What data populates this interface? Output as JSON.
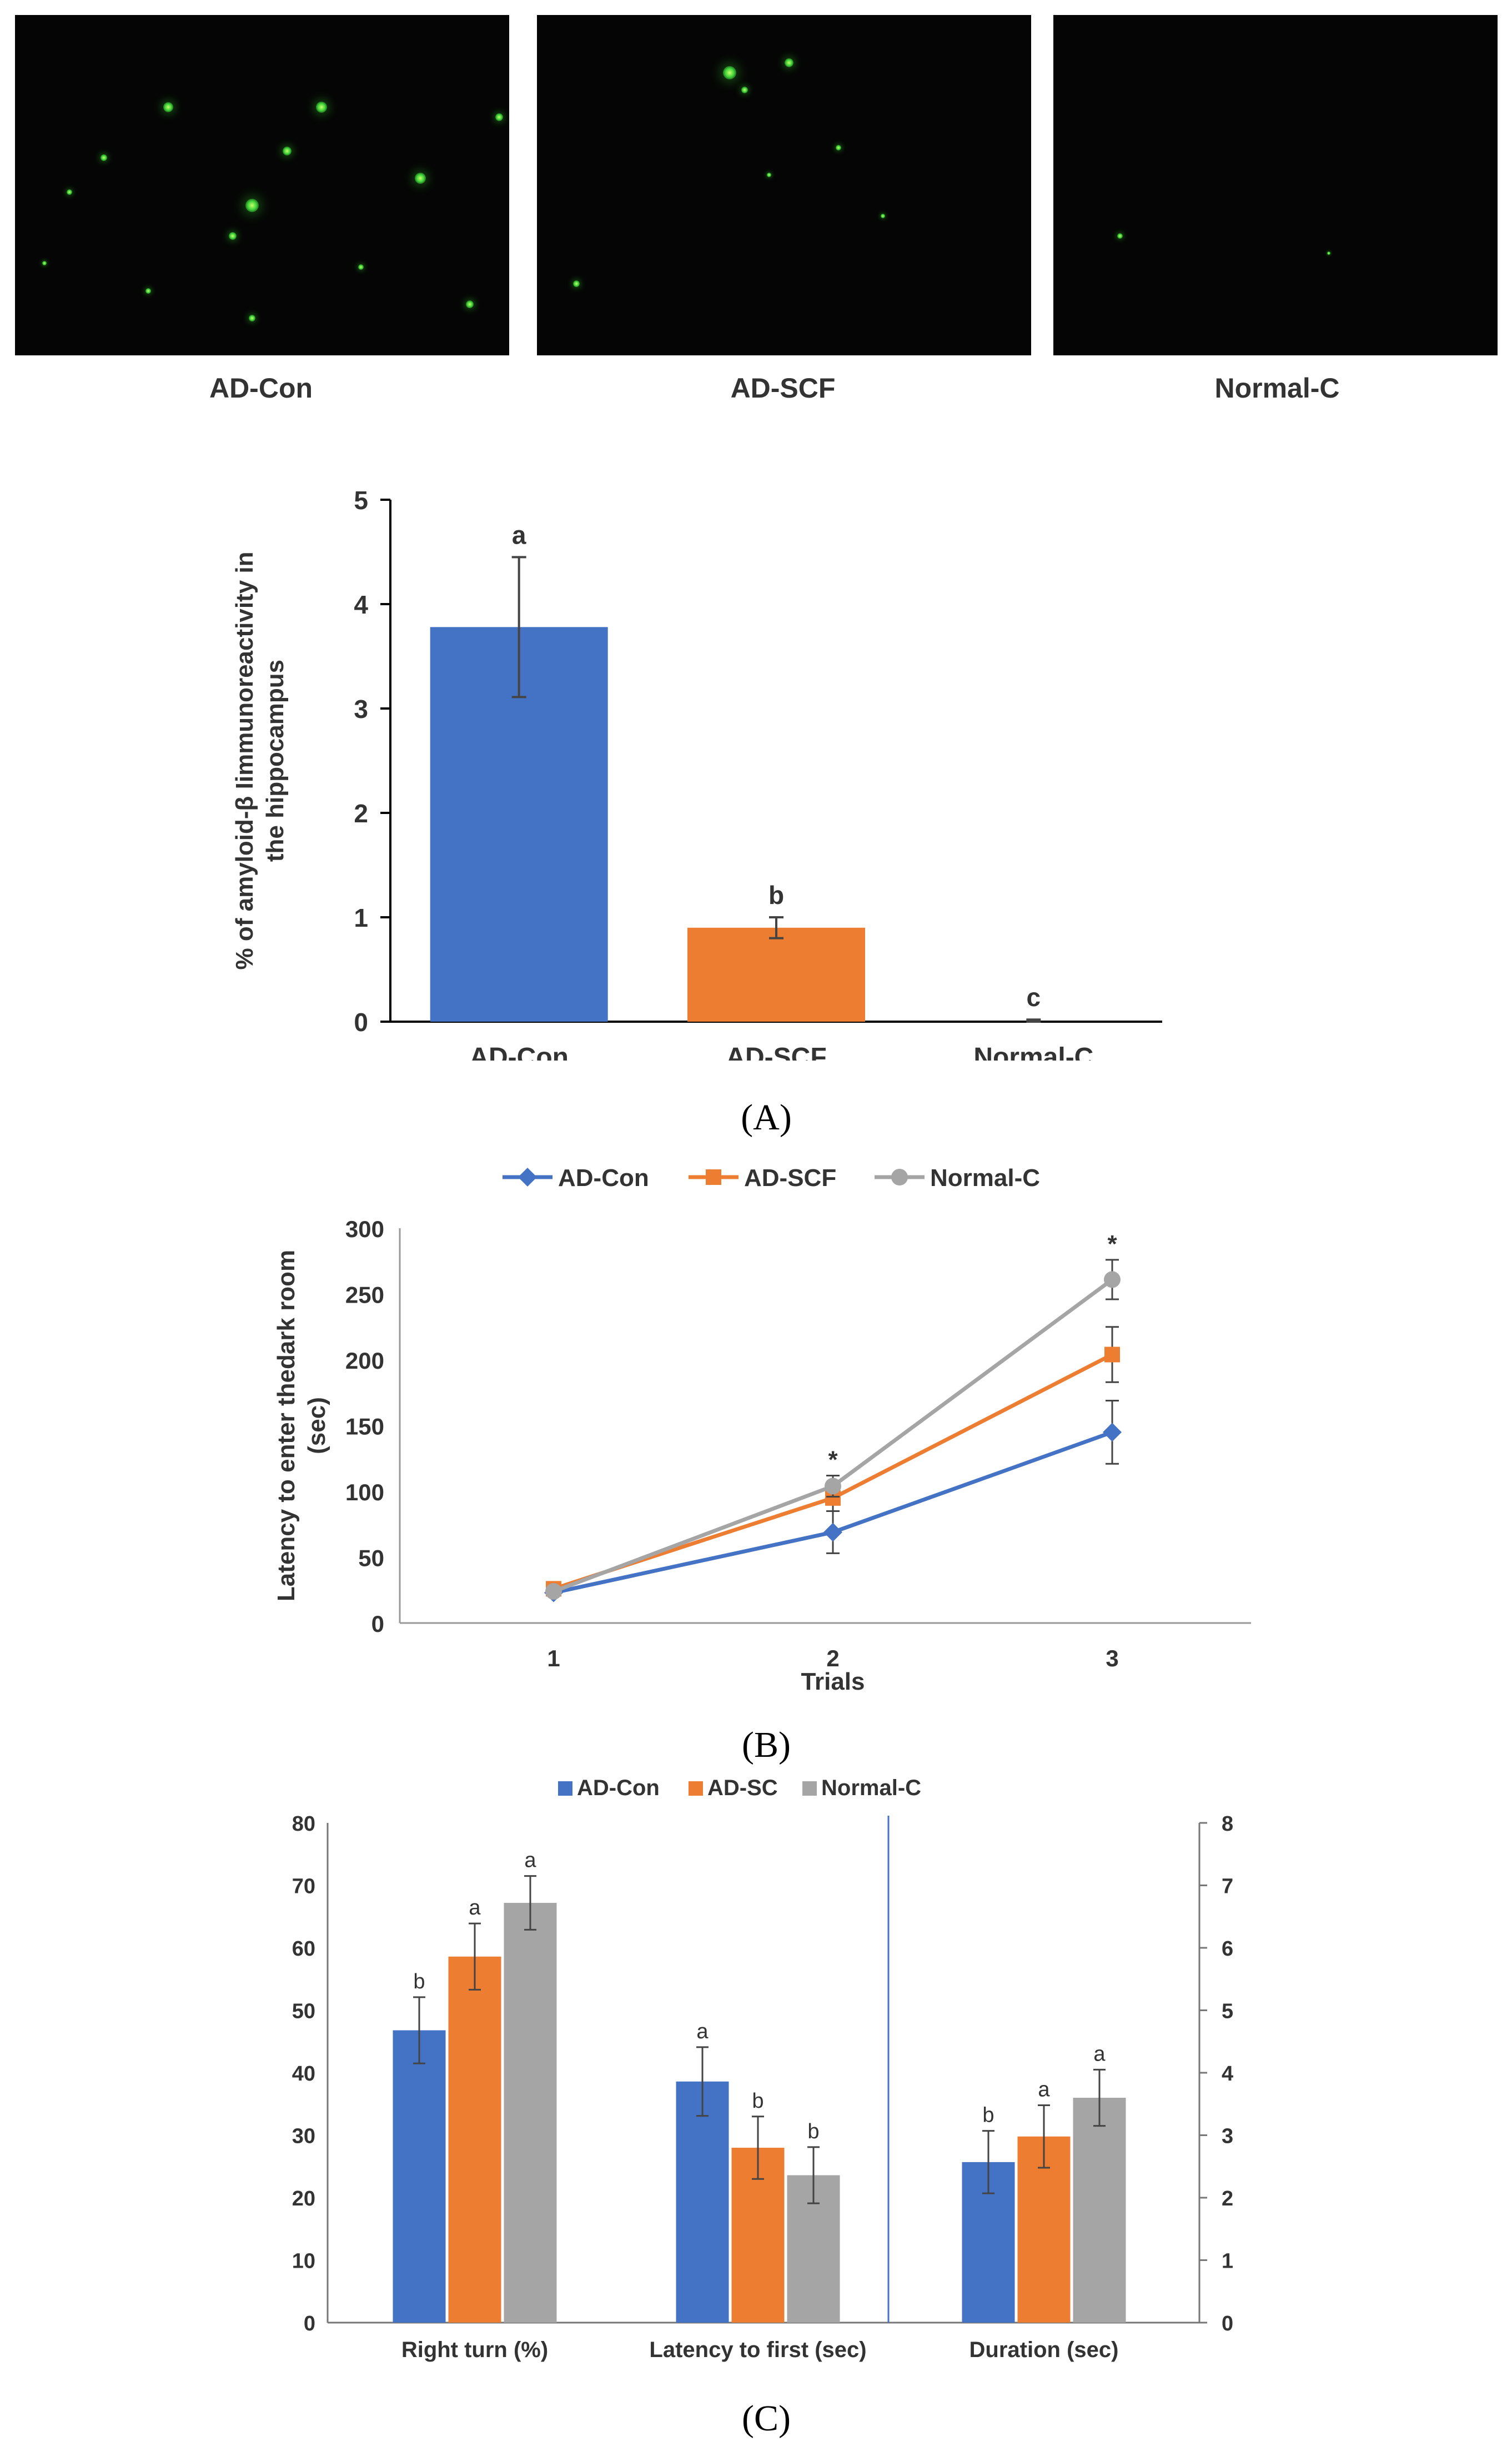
{
  "micrographs": [
    {
      "label": "AD-Con",
      "dots": [
        [
          0.31,
          0.27,
          9
        ],
        [
          0.62,
          0.27,
          10
        ],
        [
          0.55,
          0.4,
          8
        ],
        [
          0.48,
          0.56,
          12
        ],
        [
          0.82,
          0.48,
          10
        ],
        [
          0.44,
          0.65,
          7
        ],
        [
          0.18,
          0.42,
          6
        ],
        [
          0.11,
          0.52,
          5
        ],
        [
          0.92,
          0.85,
          7
        ],
        [
          0.48,
          0.89,
          6
        ],
        [
          0.27,
          0.81,
          5
        ],
        [
          0.98,
          0.3,
          7
        ],
        [
          0.7,
          0.74,
          5
        ],
        [
          0.06,
          0.73,
          4
        ]
      ]
    },
    {
      "label": "AD-SCF",
      "dots": [
        [
          0.39,
          0.17,
          12
        ],
        [
          0.51,
          0.14,
          8
        ],
        [
          0.42,
          0.22,
          6
        ],
        [
          0.61,
          0.39,
          5
        ],
        [
          0.08,
          0.79,
          6
        ],
        [
          0.7,
          0.59,
          4
        ],
        [
          0.47,
          0.47,
          4
        ]
      ]
    },
    {
      "label": "Normal-C",
      "dots": [
        [
          0.15,
          0.65,
          5
        ],
        [
          0.62,
          0.7,
          3
        ]
      ]
    }
  ],
  "panels": {
    "A": "(A)",
    "B": "(B)",
    "C": "(C)"
  },
  "chart_data": [
    {
      "type": "bar",
      "panel": "A",
      "ylabel_lines": [
        "% of amyloid-β Iimmunoreactivity in",
        "the hippocampus"
      ],
      "ylim": [
        0,
        5
      ],
      "yticks": [
        0,
        1,
        2,
        3,
        4,
        5
      ],
      "categories": [
        "AD-Con",
        "AD-SCF",
        "Normal-C"
      ],
      "values": [
        3.78,
        0.9,
        0.0
      ],
      "errors": [
        0.67,
        0.1,
        0.02
      ],
      "letters": [
        "a",
        "b",
        "c"
      ],
      "colors": [
        "#4472C4",
        "#ED7D31",
        "#A5A5A5"
      ]
    },
    {
      "type": "line",
      "panel": "B",
      "xlabel": "Trials",
      "ylabel_lines": [
        "Latency to enter thedark room",
        "(sec)"
      ],
      "x": [
        "1",
        "2",
        "3"
      ],
      "ylim": [
        0,
        300
      ],
      "yticks": [
        0,
        50,
        100,
        150,
        200,
        250,
        300
      ],
      "legend_position": "top",
      "series": [
        {
          "name": "AD-Con",
          "marker": "diamond",
          "color": "#4472C4",
          "values": [
            23,
            69,
            145
          ],
          "errors": [
            0,
            16,
            24
          ]
        },
        {
          "name": "AD-SCF",
          "marker": "square",
          "color": "#ED7D31",
          "values": [
            26,
            95,
            204
          ],
          "errors": [
            0,
            10,
            21
          ]
        },
        {
          "name": "Normal-C",
          "marker": "circle",
          "color": "#A5A5A5",
          "values": [
            24,
            104,
            261
          ],
          "errors": [
            0,
            8,
            15
          ]
        }
      ],
      "significance": [
        "",
        "*",
        "*"
      ]
    },
    {
      "type": "bar",
      "panel": "C",
      "categories": [
        "Right turn (%)",
        "Latency to first (sec)",
        "Duration (sec)"
      ],
      "left_axis": {
        "ylim": [
          0,
          80
        ],
        "yticks": [
          0,
          10,
          20,
          30,
          40,
          50,
          60,
          70,
          80
        ]
      },
      "right_axis": {
        "ylim": [
          0,
          8
        ],
        "yticks": [
          0,
          1,
          2,
          3,
          4,
          5,
          6,
          7,
          8
        ]
      },
      "legend_position": "top",
      "series": [
        {
          "name": "AD-Con",
          "color": "#4472C4",
          "values": [
            46.8,
            38.6,
            2.57
          ],
          "errors": [
            5.3,
            5.5,
            0.5
          ],
          "letters": [
            "b",
            "a",
            "b"
          ]
        },
        {
          "name": "AD-SC",
          "color": "#ED7D31",
          "values": [
            58.6,
            28.0,
            2.98
          ],
          "errors": [
            5.3,
            5.0,
            0.5
          ],
          "letters": [
            "a",
            "b",
            "a"
          ]
        },
        {
          "name": "Normal-C",
          "color": "#A5A5A5",
          "values": [
            67.2,
            23.6,
            3.6
          ],
          "errors": [
            4.3,
            4.5,
            0.45
          ],
          "letters": [
            "a",
            "b",
            "a"
          ]
        }
      ]
    }
  ]
}
